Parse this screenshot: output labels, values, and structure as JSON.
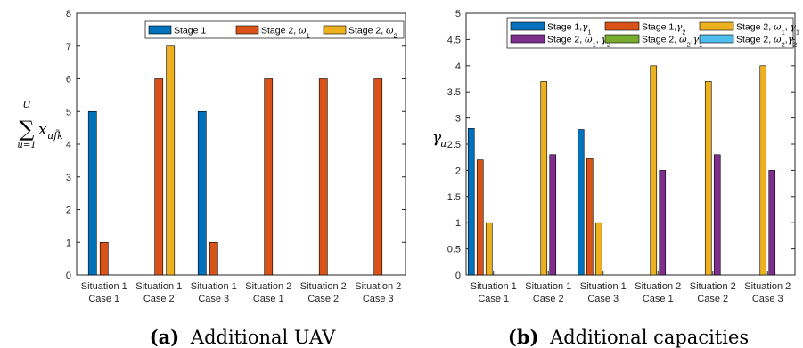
{
  "captions": [
    {
      "label": "(a)",
      "text": "Additional UAV"
    },
    {
      "label": "(b)",
      "text": "Additional capacities"
    }
  ],
  "chart_data": [
    {
      "type": "bar",
      "ylabel": "∑ x",
      "ylabel_parts": {
        "sum": "∑",
        "upper": "U",
        "lower": "u=1",
        "var": "x",
        "sub": "uf̃k"
      },
      "ylim": [
        0,
        8
      ],
      "yticks": [
        0,
        1,
        2,
        3,
        4,
        5,
        6,
        7,
        8
      ],
      "categories": [
        [
          "Situation 1",
          "Case 1"
        ],
        [
          "Situation 1",
          "Case 2"
        ],
        [
          "Situation 1",
          "Case 3"
        ],
        [
          "Situation 2",
          "Case 1"
        ],
        [
          "Situation 2",
          "Case 2"
        ],
        [
          "Situation 2",
          "Case 3"
        ]
      ],
      "legend_location": "top-right",
      "legend_columns": 3,
      "series": [
        {
          "name": "Stage 1",
          "color": "#0072BD",
          "values": [
            5,
            0,
            5,
            0,
            0,
            0
          ]
        },
        {
          "name": "Stage 2, ω1",
          "color": "#D95319",
          "values": [
            1,
            6,
            1,
            6,
            6,
            6
          ]
        },
        {
          "name": "Stage 2, ω2",
          "color": "#EDB120",
          "values": [
            0,
            7,
            0,
            0,
            0,
            0
          ]
        }
      ]
    },
    {
      "type": "bar",
      "ylabel": "γu",
      "ylabel_parts": {
        "var": "γ",
        "sub": "u"
      },
      "ylim": [
        0,
        5
      ],
      "yticks": [
        0,
        0.5,
        1,
        1.5,
        2,
        2.5,
        3,
        3.5,
        4,
        4.5,
        5
      ],
      "categories": [
        [
          "Situation 1",
          "Case 1"
        ],
        [
          "Situation 1",
          "Case 2"
        ],
        [
          "Situation 1",
          "Case 3"
        ],
        [
          "Situation 2",
          "Case 1"
        ],
        [
          "Situation 2",
          "Case 2"
        ],
        [
          "Situation 2",
          "Case 3"
        ]
      ],
      "legend_location": "top-right",
      "legend_columns": 3,
      "series": [
        {
          "name": "Stage 1,γ1",
          "color": "#0072BD",
          "values": [
            2.8,
            0,
            2.78,
            0,
            0,
            0
          ]
        },
        {
          "name": "Stage 1,γ2",
          "color": "#D95319",
          "values": [
            2.2,
            0,
            2.22,
            0,
            0,
            0
          ]
        },
        {
          "name": "Stage 2, ω1, γ1",
          "color": "#EDB120",
          "values": [
            1,
            3.7,
            1,
            4,
            3.7,
            4
          ]
        },
        {
          "name": "Stage 2, ω1, γ2",
          "color": "#7E2F8E",
          "values": [
            0,
            2.3,
            0,
            2,
            2.3,
            2
          ]
        },
        {
          "name": "Stage 2, ω2,γ1",
          "color": "#77AC30",
          "values": [
            0,
            0,
            0,
            0,
            0,
            0
          ]
        },
        {
          "name": "Stage 2, ω2,γ2",
          "color": "#4DBEEE",
          "values": [
            0,
            0,
            0,
            0,
            0,
            0
          ]
        }
      ]
    }
  ]
}
